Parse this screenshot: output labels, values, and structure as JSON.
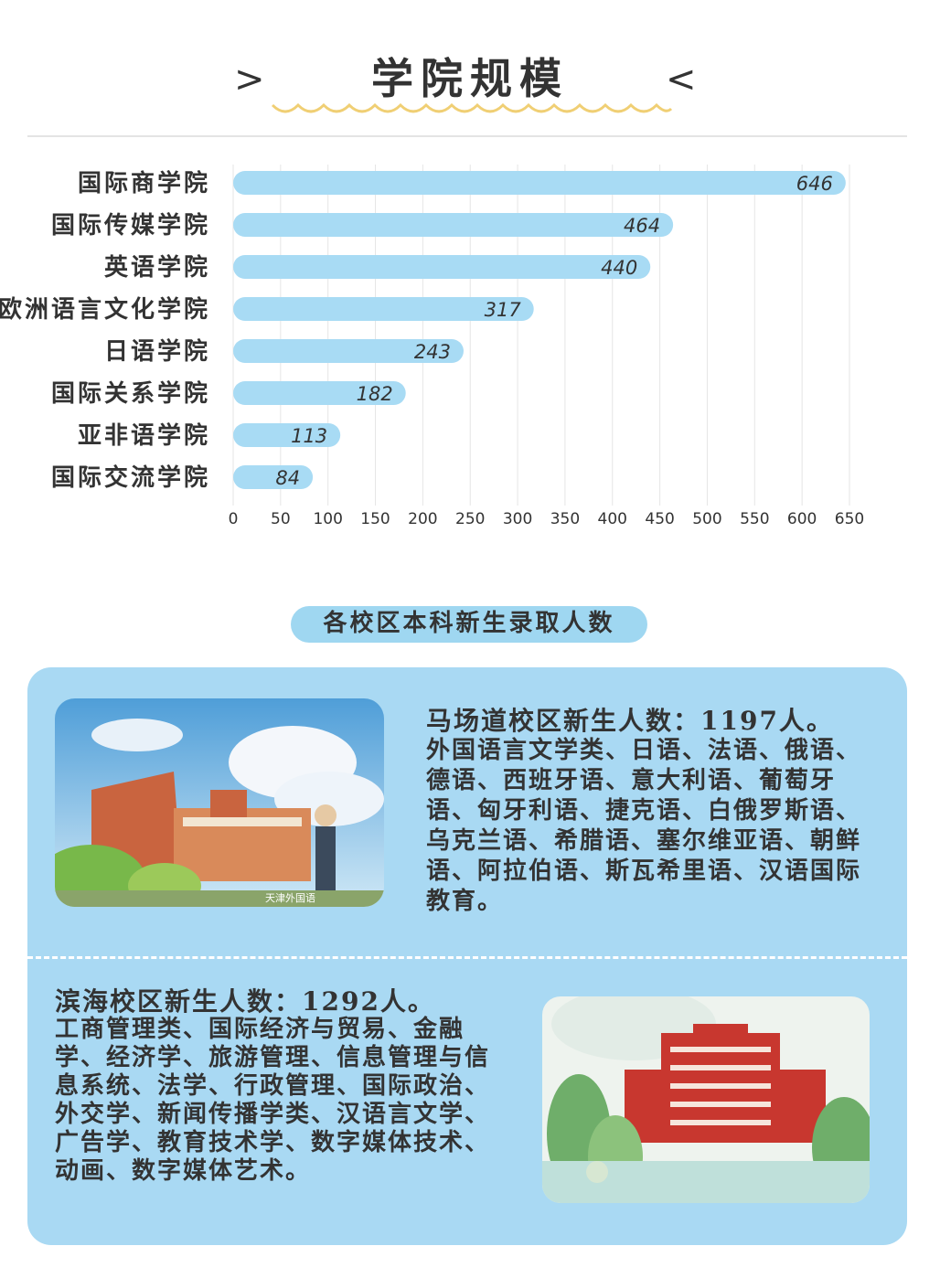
{
  "header": {
    "title": "学院规模",
    "left_mark": ">",
    "right_mark": "<"
  },
  "chart_data": {
    "type": "bar",
    "orientation": "horizontal",
    "categories": [
      "国际商学院",
      "国际传媒学院",
      "英语学院",
      "欧洲语言文化学院",
      "日语学院",
      "国际关系学院",
      "亚非语学院",
      "国际交流学院"
    ],
    "values": [
      646,
      464,
      440,
      317,
      243,
      182,
      113,
      84
    ],
    "xticks": [
      0,
      50,
      100,
      150,
      200,
      250,
      300,
      350,
      400,
      450,
      500,
      550,
      600,
      650
    ],
    "xlim": [
      0,
      650
    ],
    "grid": true,
    "bar_color": "#a8dbf4"
  },
  "section": {
    "subtitle": "各校区本科新生录取人数"
  },
  "campus_madaodao": {
    "heading": "马场道校区新生人数：1197人。",
    "majors": "外国语言文学类、日语、法语、俄语、德语、西班牙语、意大利语、葡萄牙语、匈牙利语、捷克语、白俄罗斯语、乌克兰语、希腊语、塞尔维亚语、朝鲜语、阿拉伯语、斯瓦希里语、汉语国际教育。",
    "image_watermark": "天津外国语"
  },
  "campus_binhai": {
    "heading": "滨海校区新生人数：1292人。",
    "majors": "工商管理类、国际经济与贸易、金融学、经济学、旅游管理、信息管理与信息系统、法学、行政管理、国际政治、外交学、新闻传播学类、汉语言文学、广告学、教育技术学、数字媒体技术、动画、数字媒体艺术。"
  },
  "colors": {
    "accent": "#a9d9f3",
    "wave": "#f0cf74",
    "bar": "#a8dbf4"
  }
}
